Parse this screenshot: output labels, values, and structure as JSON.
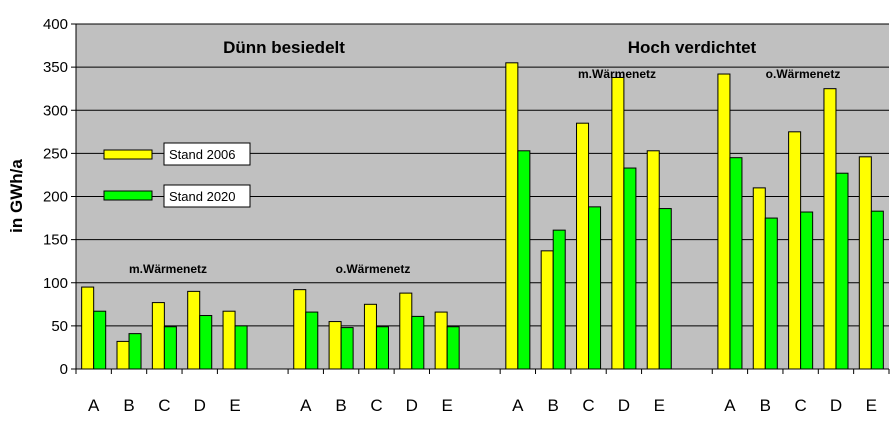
{
  "chart_data": {
    "type": "bar",
    "title": "",
    "ylabel": "in GWh/a",
    "xlabel": "",
    "ylim": [
      0,
      400
    ],
    "yticks": [
      0,
      50,
      100,
      150,
      200,
      250,
      300,
      350,
      400
    ],
    "grid": true,
    "legend_position": "left",
    "panel_titles": [
      "Dünn besiedelt",
      "Hoch verdichtet"
    ],
    "group_labels": [
      "m.Wärmenetz",
      "o.Wärmenetz",
      "m.Wärmenetz",
      "o.Wärmenetz"
    ],
    "categories": [
      "A",
      "B",
      "C",
      "D",
      "E",
      "A",
      "B",
      "C",
      "D",
      "E",
      "A",
      "B",
      "C",
      "D",
      "E",
      "A",
      "B",
      "C",
      "D",
      "E"
    ],
    "series": [
      {
        "name": "Stand 2006",
        "color": "#ffff00",
        "values": [
          95,
          32,
          77,
          90,
          67,
          92,
          55,
          75,
          88,
          66,
          355,
          137,
          285,
          338,
          253,
          342,
          210,
          275,
          325,
          246
        ]
      },
      {
        "name": "Stand 2020",
        "color": "#00ff00",
        "values": [
          67,
          41,
          49,
          62,
          50,
          66,
          48,
          49,
          61,
          49,
          253,
          161,
          188,
          233,
          186,
          245,
          175,
          182,
          227,
          183
        ]
      }
    ],
    "plot_background": "#c0c0c0"
  }
}
